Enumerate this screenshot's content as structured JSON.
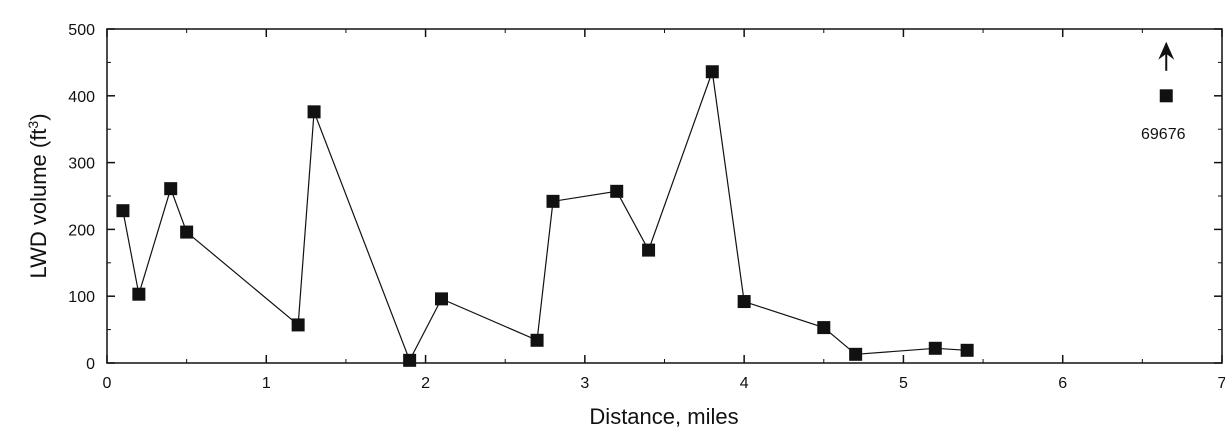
{
  "chart_data": {
    "type": "line",
    "xlabel": "Distance, miles",
    "ylabel_main": "LWD volume (ft",
    "ylabel_sup": "3",
    "ylabel_close": ")",
    "xlim": [
      0,
      7
    ],
    "ylim": [
      0,
      500
    ],
    "xticks": [
      0,
      1,
      2,
      3,
      4,
      5,
      6,
      7
    ],
    "yticks": [
      0,
      100,
      200,
      300,
      400,
      500
    ],
    "series": [
      {
        "x": [
          0.1,
          0.2,
          0.4,
          0.5,
          1.2,
          1.3,
          1.9,
          2.1,
          2.7,
          2.8,
          3.2,
          3.4,
          3.8,
          4.0,
          4.5,
          4.7,
          5.2,
          5.4
        ],
        "y": [
          228,
          103,
          261,
          196,
          57,
          376,
          4,
          96,
          34,
          242,
          257,
          169,
          436,
          92,
          53,
          13,
          22,
          19
        ]
      }
    ],
    "outlier": {
      "x": 6.65,
      "y": 400,
      "label": "69676",
      "marker": "arrow-up"
    }
  }
}
